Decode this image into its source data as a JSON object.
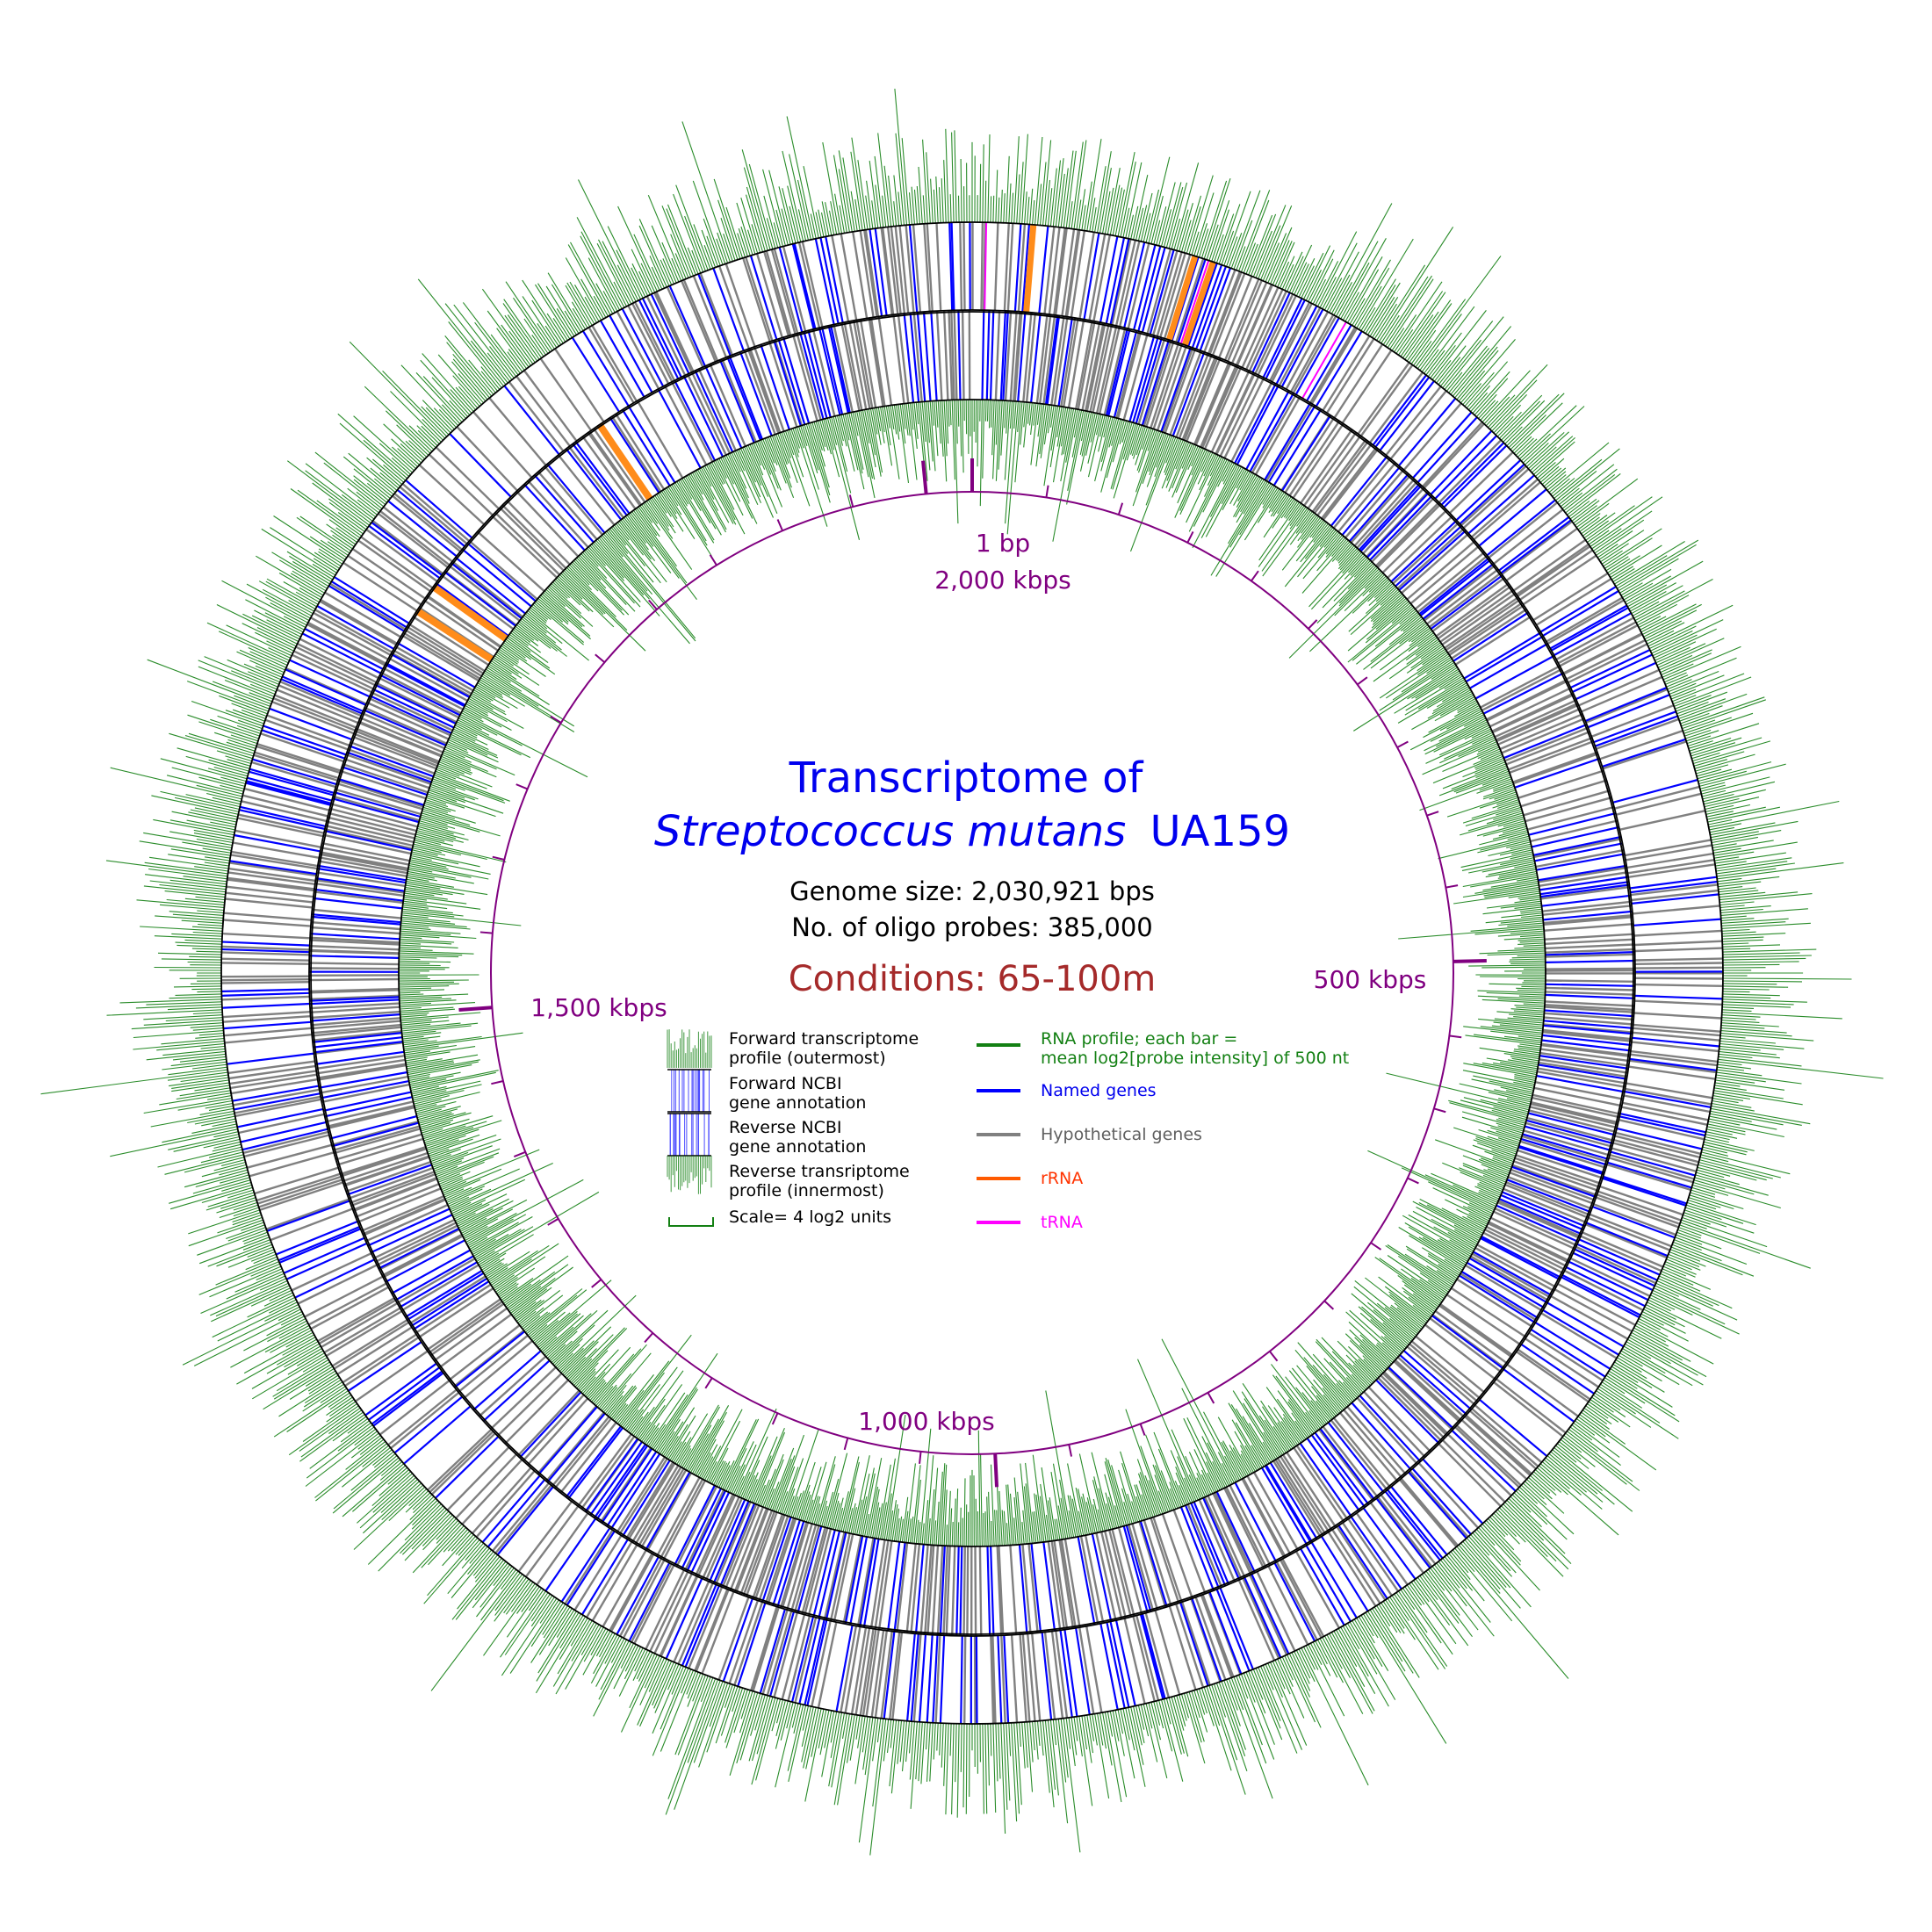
{
  "title": {
    "line1": "Transcriptome of",
    "organism_italic": "Streptococcus mutans",
    "strain": "UA159"
  },
  "genome_size_text": "Genome size: 2,030,921 bps",
  "probes_text": "No. of oligo probes: 385,000",
  "conditions_text": "Conditions: 65-100m",
  "scale": {
    "labels": [
      "1 bp",
      "2,000 kbps",
      "500 kbps",
      "1,000 kbps",
      "1,500 kbps"
    ],
    "genome_length": 2030921,
    "major_positions": [
      0,
      500000,
      1000000,
      1500000,
      2000000
    ],
    "minor_tick_step": 50000
  },
  "legend_left": {
    "items": [
      {
        "line1": "Forward transcriptome",
        "line2": "profile (outermost)"
      },
      {
        "line1": "Forward NCBI",
        "line2": "gene annotation"
      },
      {
        "line1": "Reverse NCBI",
        "line2": "gene annotation"
      },
      {
        "line1": "Reverse transriptome",
        "line2": "profile (innermost)"
      },
      {
        "line1": "Scale= 4 log2 units",
        "line2": ""
      }
    ]
  },
  "legend_right": {
    "items": [
      {
        "line1": "RNA profile; each bar =",
        "line2": "mean log2[probe intensity] of 500 nt",
        "color": "#138013"
      },
      {
        "line1": "Named genes",
        "line2": "",
        "color": "#0000ff",
        "text_color": "#0000ee"
      },
      {
        "line1": "Hypothetical genes",
        "line2": "",
        "color": "#808080",
        "text_color": "#606060"
      },
      {
        "line1": "rRNA",
        "line2": "",
        "color": "#ff5a00",
        "text_color": "#ff3300"
      },
      {
        "line1": "tRNA",
        "line2": "",
        "color": "#ff00ff",
        "text_color": "#ff00ff"
      }
    ]
  },
  "colors": {
    "profile": "#138013",
    "named": "#0000ff",
    "hypothetical": "#808080",
    "rrna": "#ff8c1a",
    "trna": "#ff00ff",
    "scale": "#800080",
    "title": "#0000ee",
    "conditions": "#a52a2a"
  },
  "annotation_regions": {
    "rrna_forward_fractions": [
      0.013,
      0.048,
      0.052
    ],
    "rrna_reverse_fractions": [
      0.905,
      0.849,
      0.842
    ],
    "trna_forward_fractions": [
      0.003,
      0.051,
      0.083
    ]
  }
}
